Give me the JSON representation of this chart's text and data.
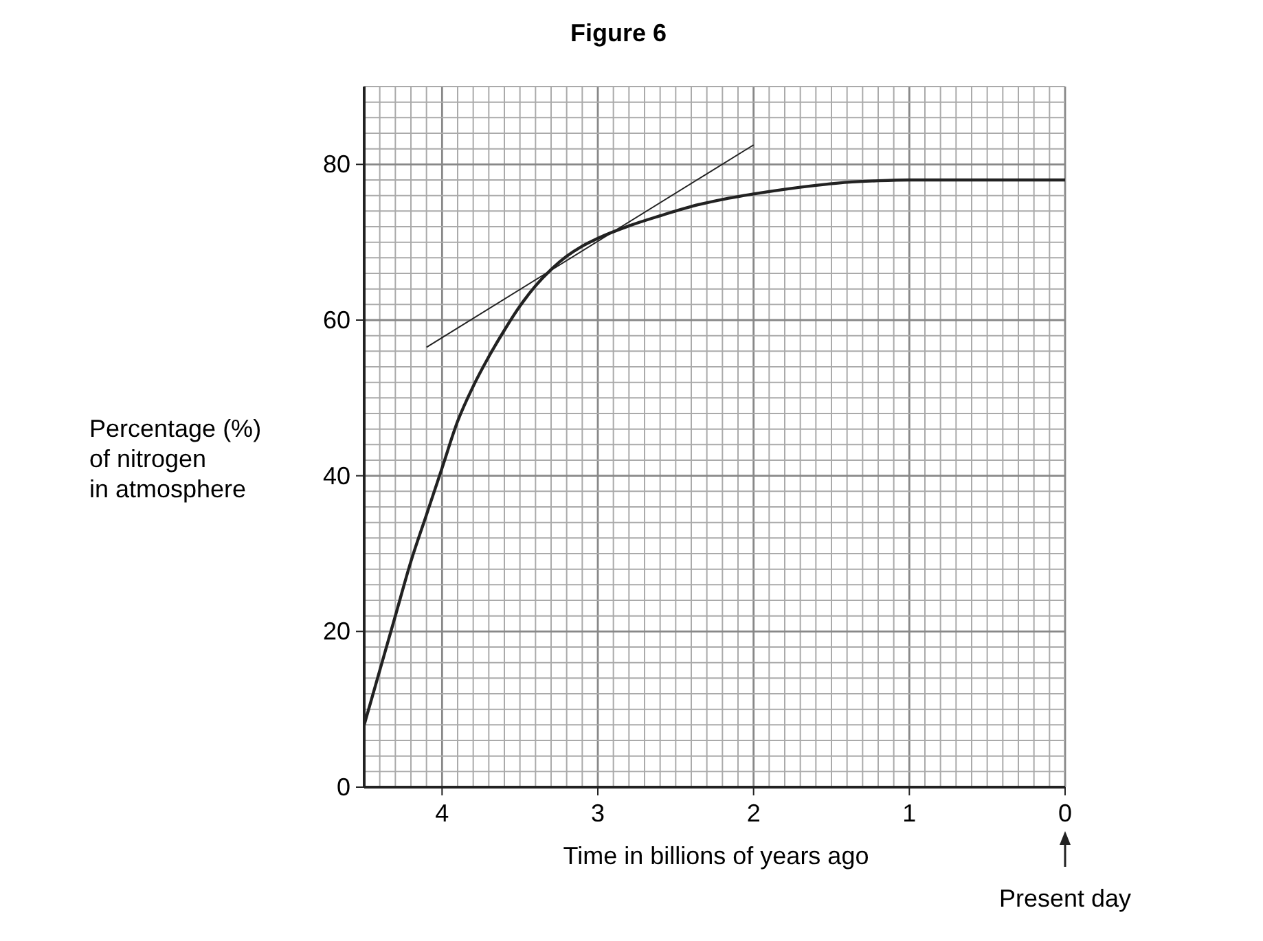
{
  "chart_data": {
    "type": "line",
    "title": "Figure 6",
    "xlabel": "Time in billions of years ago",
    "ylabel": "Percentage (%)\nof nitrogen\nin atmosphere",
    "annotations": [
      "Present day"
    ],
    "xlim": [
      4.5,
      0
    ],
    "ylim": [
      0,
      90
    ],
    "xticks": [
      {
        "value": 4.5,
        "label": null
      },
      {
        "value": 4.4,
        "label": null
      },
      {
        "value": 4.3,
        "label": null
      },
      {
        "value": 4.2,
        "label": null
      },
      {
        "value": 4.1,
        "label": null
      },
      4,
      {
        "value": 3.9,
        "label": null
      },
      {
        "value": 3.8,
        "label": null
      },
      {
        "value": 3.7,
        "label": null
      },
      {
        "value": 3.6,
        "label": null
      },
      {
        "value": 3.5,
        "label": null
      },
      {
        "value": 3.4,
        "label": null
      },
      {
        "value": 3.3,
        "label": null
      },
      {
        "value": 3.2,
        "label": null
      },
      {
        "value": 3.1,
        "label": null
      },
      3,
      {
        "value": 2.9,
        "label": null
      },
      {
        "value": 2.8,
        "label": null
      },
      {
        "value": 2.7,
        "label": null
      },
      {
        "value": 2.6,
        "label": null
      },
      {
        "value": 2.5,
        "label": null
      },
      {
        "value": 2.4,
        "label": null
      },
      {
        "value": 2.3,
        "label": null
      },
      {
        "value": 2.2,
        "label": null
      },
      {
        "value": 2.1,
        "label": null
      },
      2,
      {
        "value": 1.9,
        "label": null
      },
      {
        "value": 1.8,
        "label": null
      },
      {
        "value": 1.7,
        "label": null
      },
      {
        "value": 1.6,
        "label": null
      },
      {
        "value": 1.5,
        "label": null
      },
      {
        "value": 1.4,
        "label": null
      },
      {
        "value": 1.3,
        "label": null
      },
      {
        "value": 1.2,
        "label": null
      },
      {
        "value": 1.1,
        "label": null
      },
      1,
      {
        "value": 0.9,
        "label": null
      },
      {
        "value": 0.8,
        "label": null
      },
      {
        "value": 0.7,
        "label": null
      },
      {
        "value": 0.6,
        "label": null
      },
      {
        "value": 0.5,
        "label": null
      },
      {
        "value": 0.4,
        "label": null
      },
      {
        "value": 0.3,
        "label": null
      },
      {
        "value": 0.2,
        "label": null
      },
      {
        "value": 0.1,
        "label": null
      },
      0
    ],
    "yticks": [
      0,
      {
        "value": 2,
        "label": null
      },
      {
        "value": 4,
        "label": null
      },
      {
        "value": 6,
        "label": null
      },
      {
        "value": 8,
        "label": null
      },
      {
        "value": 10,
        "label": null
      },
      {
        "value": 12,
        "label": null
      },
      {
        "value": 14,
        "label": null
      },
      {
        "value": 16,
        "label": null
      },
      {
        "value": 18,
        "label": null
      },
      20,
      {
        "value": 22,
        "label": null
      },
      {
        "value": 24,
        "label": null
      },
      {
        "value": 26,
        "label": null
      },
      {
        "value": 28,
        "label": null
      },
      {
        "value": 30,
        "label": null
      },
      {
        "value": 32,
        "label": null
      },
      {
        "value": 34,
        "label": null
      },
      {
        "value": 36,
        "label": null
      },
      {
        "value": 38,
        "label": null
      },
      40,
      {
        "value": 42,
        "label": null
      },
      {
        "value": 44,
        "label": null
      },
      {
        "value": 46,
        "label": null
      },
      {
        "value": 48,
        "label": null
      },
      {
        "value": 50,
        "label": null
      },
      {
        "value": 52,
        "label": null
      },
      {
        "value": 54,
        "label": null
      },
      {
        "value": 56,
        "label": null
      },
      {
        "value": 58,
        "label": null
      },
      60,
      {
        "value": 62,
        "label": null
      },
      {
        "value": 64,
        "label": null
      },
      {
        "value": 66,
        "label": null
      },
      {
        "value": 68,
        "label": null
      },
      {
        "value": 70,
        "label": null
      },
      {
        "value": 72,
        "label": null
      },
      {
        "value": 74,
        "label": null
      },
      {
        "value": 76,
        "label": null
      },
      {
        "value": 78,
        "label": null
      },
      80,
      {
        "value": 82,
        "label": null
      },
      {
        "value": 84,
        "label": null
      },
      {
        "value": 86,
        "label": null
      },
      {
        "value": 88,
        "label": null
      },
      {
        "value": 90,
        "label": null
      }
    ],
    "grid": true,
    "series": [
      {
        "color": "#222222",
        "x": [
          4.5,
          4.4,
          4.3,
          4.2,
          4.1,
          4,
          3.9,
          3.8,
          3.7,
          3.6,
          3.5,
          3.4,
          3.3,
          3.2,
          3.1,
          3,
          2.8,
          2.6,
          2.4,
          2.2,
          2,
          1.8,
          1.6,
          1.4,
          1.2,
          1,
          0.5,
          0
        ],
        "values": [
          8,
          15,
          22,
          29,
          35,
          41,
          47,
          51.5,
          55.3,
          58.7,
          61.8,
          64.4,
          66.5,
          68.2,
          69.5,
          70.5,
          72.1,
          73.4,
          74.6,
          75.5,
          76.2,
          76.8,
          77.3,
          77.7,
          77.9,
          78,
          78,
          78
        ]
      },
      {
        "type": "line",
        "color": "#222222",
        "x": [
          4.1,
          2
        ],
        "values": [
          56.5,
          82.5
        ]
      }
    ]
  }
}
